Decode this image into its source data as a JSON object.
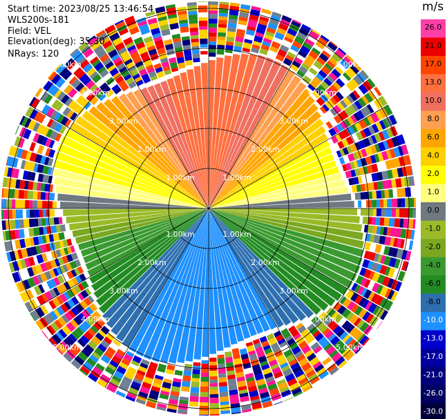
{
  "info": {
    "start_time": "Start time: 2023/08/25 13:46:54",
    "device": "WLS200s-181",
    "field": "Field: VEL",
    "elevation": "Elevation(deg): 35.30",
    "nrays": "NRays: 120"
  },
  "colorbar": {
    "unit": "m/s",
    "levels": [
      "26.0",
      "21.0",
      "17.0",
      "13.0",
      "10.0",
      "8.0",
      "6.0",
      "4.0",
      "2.0",
      "1.0",
      "0.0",
      "-1.0",
      "-2.0",
      "-4.0",
      "-6.0",
      "-8.0",
      "-10.0",
      "-13.0",
      "-17.0",
      "-21.0",
      "-26.0",
      "-30.0"
    ],
    "colors": [
      "#ff3fa6",
      "#ee0000",
      "#ff4500",
      "#ff7040",
      "#f07060",
      "#ffa050",
      "#ffa500",
      "#ffd000",
      "#ffff00",
      "#ffff80",
      "#707880",
      "#9aba28",
      "#7aa820",
      "#3a9a30",
      "#228b22",
      "#2e6fb0",
      "#1e90ff",
      "#0000cd",
      "#0000a0",
      "#00007a",
      "#000060",
      "#00003a"
    ]
  },
  "chart_data": {
    "type": "ppi",
    "field": "VEL",
    "rings_km": [
      1,
      2,
      3,
      4,
      5
    ],
    "ring_labels": [
      "1.00km",
      "2.00km",
      "3.00km",
      "4.00km",
      "5.00km"
    ],
    "nrays": 120,
    "velocity_bands": [
      {
        "azimuth_deg": 0,
        "velocity": 17.0
      },
      {
        "azimuth_deg": 30,
        "velocity": 10.0
      },
      {
        "azimuth_deg": 60,
        "velocity": 4.0
      },
      {
        "azimuth_deg": 90,
        "velocity": 0.0
      },
      {
        "azimuth_deg": 120,
        "velocity": -4.0
      },
      {
        "azimuth_deg": 150,
        "velocity": -8.0
      },
      {
        "azimuth_deg": 180,
        "velocity": -10.0
      },
      {
        "azimuth_deg": 210,
        "velocity": -8.0
      },
      {
        "azimuth_deg": 240,
        "velocity": -4.0
      },
      {
        "azimuth_deg": 270,
        "velocity": 0.0
      },
      {
        "azimuth_deg": 300,
        "velocity": 4.0
      },
      {
        "azimuth_deg": 330,
        "velocity": 10.0
      }
    ]
  }
}
